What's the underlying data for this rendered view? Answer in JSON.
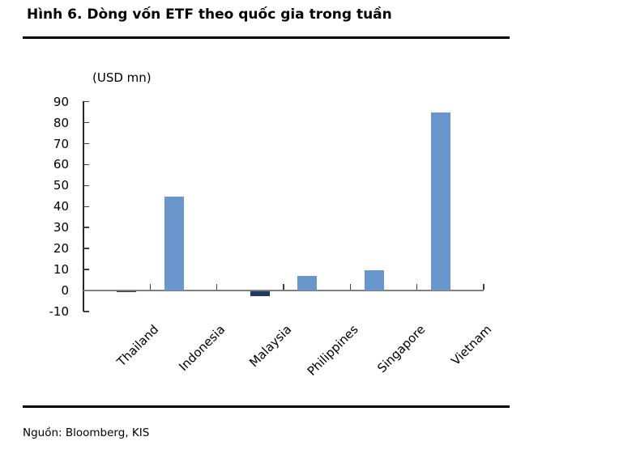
{
  "header": {
    "title": "Hình 6. Dòng vốn ETF theo quốc gia trong tuần"
  },
  "footer": {
    "source": "Nguồn: Bloomberg, KIS"
  },
  "colors": {
    "bar_light_blue": "#6A96CE",
    "bar_dark_navy": "#1F3864",
    "x_axis_line": "#7F7F7F",
    "y_axis_line": "#262626",
    "rule": "#000000"
  },
  "chart_data": {
    "type": "bar",
    "title": "Hình 6. Dòng vốn ETF theo quốc gia trong tuần",
    "unit_label": "(USD mn)",
    "xlabel": "",
    "ylabel": "(USD mn)",
    "categories": [
      "Thailand",
      "Indonesia",
      "Malaysia",
      "Philippines",
      "Singapore",
      "Vietnam"
    ],
    "series": [
      {
        "name": "light-blue-bars",
        "color": "#6A96CE",
        "values": [
          0,
          44.9,
          0,
          6.9,
          9.6,
          85.0
        ]
      },
      {
        "name": "dark-navy-bars",
        "color": "#1F3864",
        "values": [
          -0.3,
          0,
          -2.3,
          0,
          0,
          0
        ]
      }
    ],
    "ylim": [
      -10,
      90
    ],
    "yticks": [
      90,
      80,
      70,
      60,
      50,
      40,
      30,
      20,
      10,
      0,
      -10
    ],
    "grid": false,
    "legend_position": "none",
    "xtick_label_rotation_deg": 45
  }
}
